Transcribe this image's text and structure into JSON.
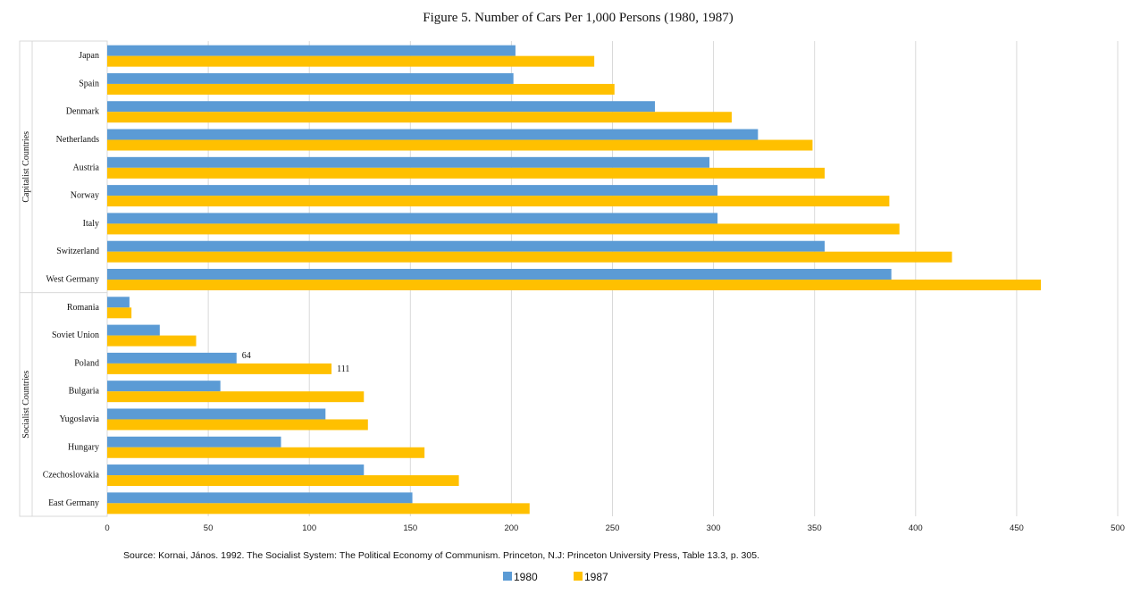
{
  "chart_data": {
    "type": "bar",
    "orientation": "horizontal",
    "title": "Figure 5. Number of Cars Per 1,000 Persons (1980, 1987)",
    "xlim": [
      0,
      500
    ],
    "xticks": [
      "0",
      "50",
      "100",
      "150",
      "200",
      "250",
      "300",
      "350",
      "400",
      "450",
      "500"
    ],
    "grid": true,
    "legend": "bottom",
    "groups": [
      {
        "name": "Capitalist Countries",
        "categories": [
          "Japan",
          "Spain",
          "Denmark",
          "Netherlands",
          "Austria",
          "Norway",
          "Italy",
          "Switzerland",
          "West Germany"
        ]
      },
      {
        "name": "Socialist Countries",
        "categories": [
          "Romania",
          "Soviet Union",
          "Poland",
          "Bulgaria",
          "Yugoslavia",
          "Hungary",
          "Czechoslovakia",
          "East Germany"
        ]
      }
    ],
    "categories": [
      "Japan",
      "Spain",
      "Denmark",
      "Netherlands",
      "Austria",
      "Norway",
      "Italy",
      "Switzerland",
      "West Germany",
      "Romania",
      "Soviet Union",
      "Poland",
      "Bulgaria",
      "Yugoslavia",
      "Hungary",
      "Czechoslovakia",
      "East Germany"
    ],
    "series": [
      {
        "name": "1980",
        "color": "#5b9bd5",
        "values": [
          202,
          201,
          271,
          322,
          298,
          302,
          302,
          355,
          388,
          11,
          26,
          64,
          56,
          108,
          86,
          127,
          151
        ]
      },
      {
        "name": "1987",
        "color": "#ffc000",
        "values": [
          241,
          251,
          309,
          349,
          355,
          387,
          392,
          418,
          462,
          12,
          44,
          111,
          127,
          129,
          157,
          174,
          209
        ]
      }
    ],
    "data_labels": [
      {
        "category": "Poland",
        "series": "1980",
        "text": "64"
      },
      {
        "category": "Poland",
        "series": "1987",
        "text": "111"
      }
    ],
    "source": "Source: Kornai, János. 1992. The Socialist System: The Political Economy of Communism. Princeton, N.J: Princeton University Press, Table 13.3, p. 305."
  }
}
